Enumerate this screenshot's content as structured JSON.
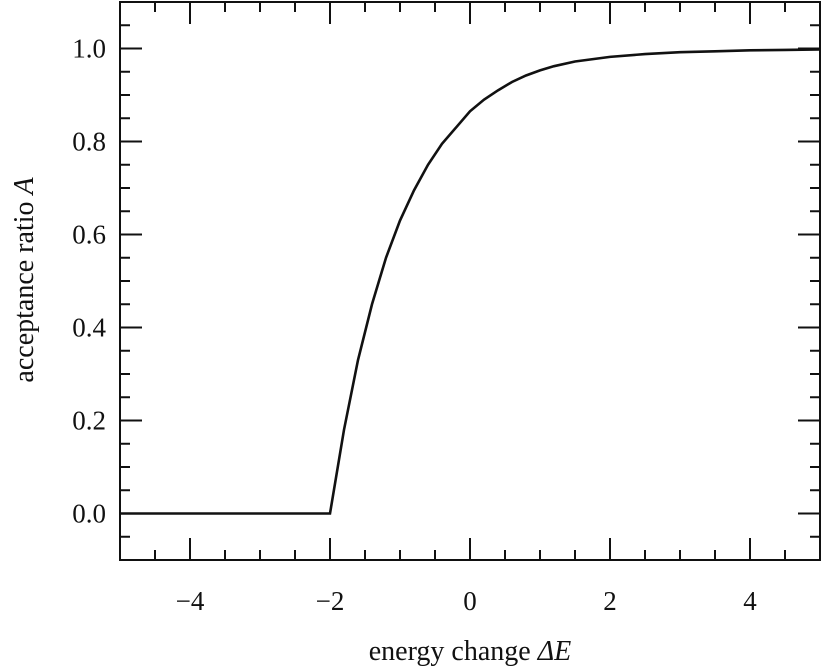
{
  "chart_data": {
    "type": "line",
    "title": "",
    "xlabel": "energy change ΔE",
    "ylabel": "acceptance ratio A",
    "xlabel_parts": {
      "text": "energy change ",
      "symbol": "ΔE"
    },
    "ylabel_parts": {
      "text": "acceptance ratio ",
      "symbol": "A"
    },
    "xlim": [
      -5,
      5
    ],
    "ylim": [
      -0.1,
      1.1
    ],
    "x_ticks": [
      -4,
      -2,
      0,
      2,
      4
    ],
    "x_tick_labels": [
      "−4",
      "−2",
      "0",
      "2",
      "4"
    ],
    "y_ticks": [
      0.0,
      0.2,
      0.4,
      0.6,
      0.8,
      1.0
    ],
    "y_tick_labels": [
      "0.0",
      "0.2",
      "0.4",
      "0.6",
      "0.8",
      "1.0"
    ],
    "grid": false,
    "series": [
      {
        "color": "#111111",
        "x": [
          -5,
          -4,
          -3,
          -2,
          -2,
          -1.8,
          -1.6,
          -1.4,
          -1.2,
          -1.0,
          -0.8,
          -0.6,
          -0.4,
          -0.2,
          0.0,
          0.2,
          0.4,
          0.6,
          0.8,
          1.0,
          1.2,
          1.5,
          2.0,
          2.5,
          3.0,
          3.5,
          4.0,
          4.5,
          5.0
        ],
        "y": [
          0,
          0,
          0,
          0,
          0,
          0.18,
          0.33,
          0.45,
          0.55,
          0.63,
          0.695,
          0.75,
          0.795,
          0.83,
          0.865,
          0.89,
          0.91,
          0.928,
          0.942,
          0.953,
          0.962,
          0.972,
          0.982,
          0.988,
          0.992,
          0.994,
          0.996,
          0.997,
          0.998
        ]
      }
    ]
  }
}
